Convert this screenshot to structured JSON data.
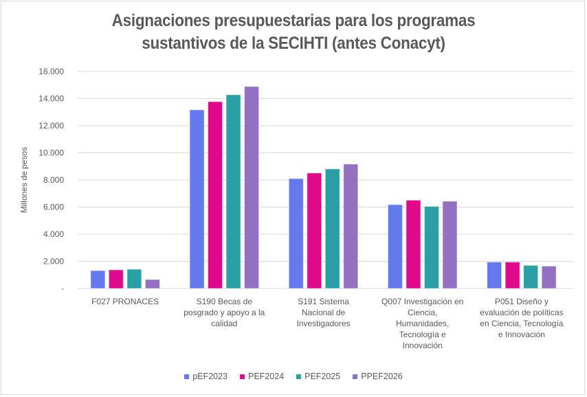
{
  "chart_data": {
    "type": "bar",
    "title": "Asignaciones presupuestarias para los programas sustantivos de la SECIHTI (antes Conacyt)",
    "title_lines": [
      "Asignaciones presupuestarias para los programas",
      "sustantivos de la SECIHTI (antes Conacyt)"
    ],
    "xlabel": "",
    "ylabel": "Millones de pesos",
    "ylim": [
      0,
      16000
    ],
    "yticks": [
      0,
      2000,
      4000,
      6000,
      8000,
      10000,
      12000,
      14000,
      16000
    ],
    "ytick_labels": [
      "-",
      "2.000",
      "4.000",
      "6.000",
      "8.000",
      "10.000",
      "12.000",
      "14.000",
      "16.000"
    ],
    "grid": true,
    "legend_position": "bottom",
    "categories": [
      "F027 PRONACES",
      "S190 Becas de posgrado y apoyo a la calidad",
      "S191 Sistema Nacional de Investigadores",
      "Q007 Investigación en Ciencia, Humanidades, Tecnología e Innovación",
      "P051 Diseño y evaluación de políticas en Ciencia, Tecnología e Innovación"
    ],
    "category_lines": [
      [
        "F027 PRONACES"
      ],
      [
        "S190 Becas de",
        "posgrado y apoyo a la",
        "calidad"
      ],
      [
        "S191 Sistema",
        "Nacional de",
        "Investigadores"
      ],
      [
        "Q007 Investigación en",
        "Ciencia,",
        "Humanidades,",
        "Tecnología e",
        "Innovación"
      ],
      [
        "P051 Diseño y",
        "evaluación de políticas",
        "en Ciencia, Tecnología",
        "e Innovación"
      ]
    ],
    "series": [
      {
        "name": "pEF2023",
        "color": "#6479ee",
        "values": [
          1320,
          13170,
          8100,
          6180,
          1950
        ]
      },
      {
        "name": "PEF2024",
        "color": "#e0098b",
        "values": [
          1370,
          13770,
          8510,
          6510,
          1950
        ]
      },
      {
        "name": "PEF2025",
        "color": "#2aa0a4",
        "values": [
          1420,
          14280,
          8810,
          6050,
          1700
        ]
      },
      {
        "name": "PPEF2026",
        "color": "#9370c2",
        "values": [
          660,
          14890,
          9170,
          6430,
          1650
        ]
      }
    ]
  }
}
